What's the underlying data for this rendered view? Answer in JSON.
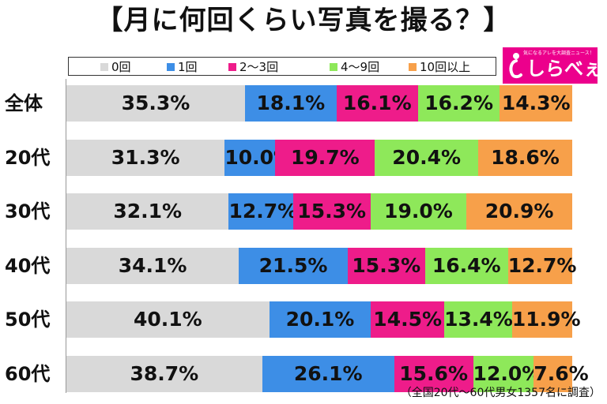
{
  "chart_data": {
    "type": "bar",
    "orientation": "horizontal",
    "stacked": true,
    "title": "【月に何回くらい写真を撮る？】",
    "categories": [
      "全体",
      "20代",
      "30代",
      "40代",
      "50代",
      "60代"
    ],
    "series": [
      {
        "name": "0回",
        "color": "#d9d9d9",
        "values": [
          35.3,
          31.3,
          32.1,
          34.1,
          40.1,
          38.7
        ]
      },
      {
        "name": "1回",
        "color": "#3d8ee6",
        "values": [
          18.1,
          10.0,
          12.7,
          21.5,
          20.1,
          26.1
        ]
      },
      {
        "name": "2～3回",
        "color": "#ee1c8a",
        "values": [
          16.1,
          19.7,
          15.3,
          15.3,
          14.5,
          15.6
        ]
      },
      {
        "name": "4～9回",
        "color": "#8ee85a",
        "values": [
          16.2,
          20.4,
          19.0,
          16.4,
          13.4,
          12.0
        ]
      },
      {
        "name": "10回以上",
        "color": "#f7a04a",
        "values": [
          14.3,
          18.6,
          20.9,
          12.7,
          11.9,
          7.6
        ]
      }
    ],
    "value_format": "0.0%",
    "legend_position": "top",
    "xlim": [
      0,
      100
    ],
    "grid": false
  },
  "logo": {
    "name": "しらべぇ",
    "tagline": "気になるアレを大調査ニュース！"
  },
  "source_note": "（全国20代～60代男女1357名に調査）"
}
